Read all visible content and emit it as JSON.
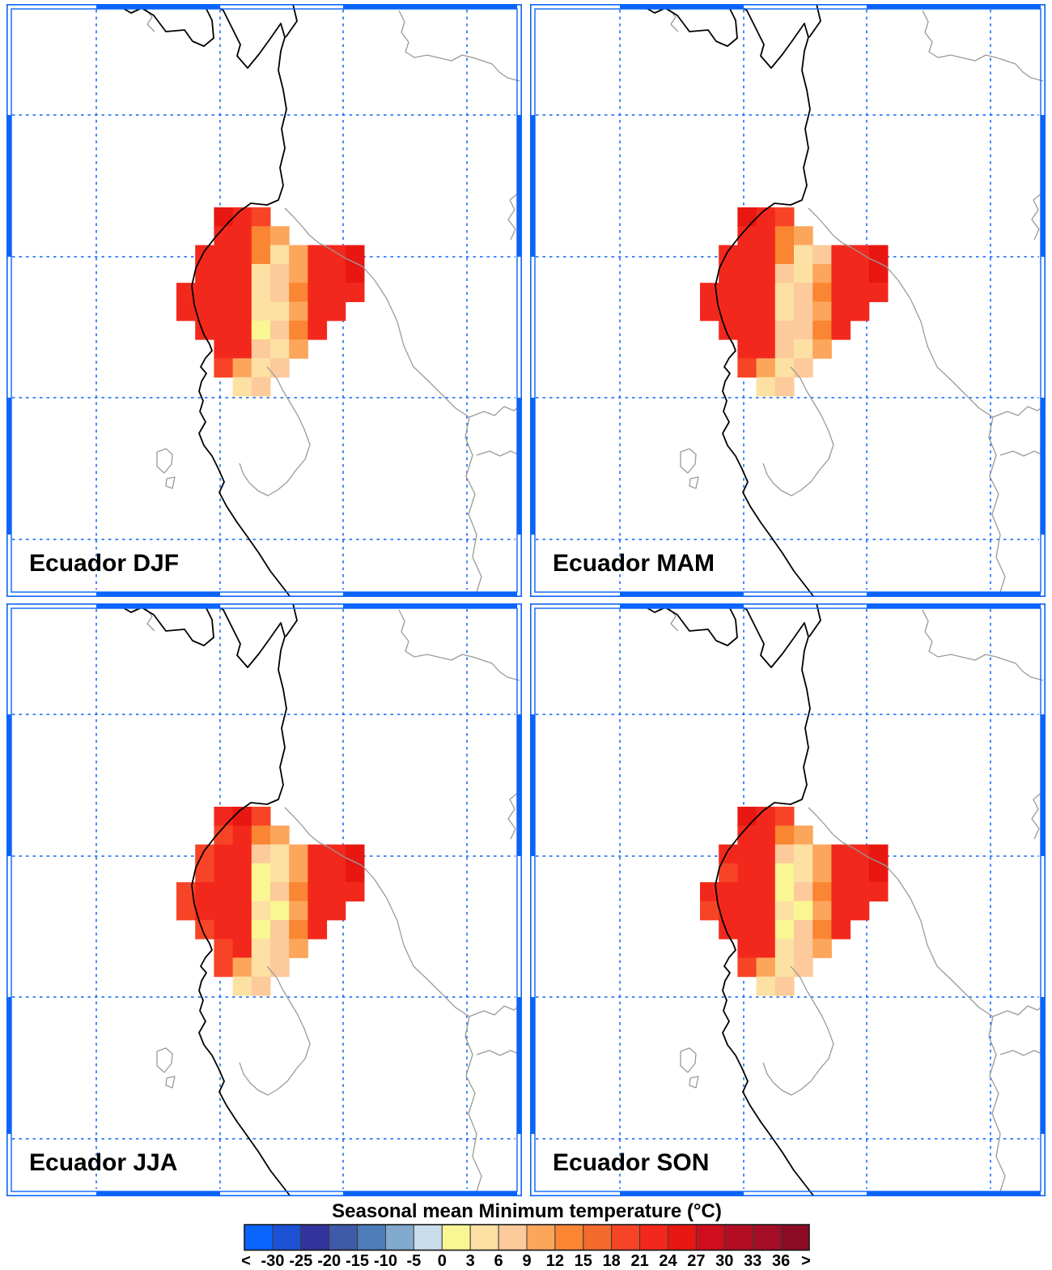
{
  "figure": {
    "panels": [
      {
        "label": "Ecuador DJF"
      },
      {
        "label": "Ecuador MAM"
      },
      {
        "label": "Ecuador JJA"
      },
      {
        "label": "Ecuador SON"
      }
    ],
    "colorbar": {
      "title": "Seasonal mean Minimum temperature (°C)",
      "tick_labels": [
        "<",
        "-30",
        "-25",
        "-20",
        "-15",
        "-10",
        "-5",
        "0",
        "3",
        "6",
        "9",
        "12",
        "15",
        "18",
        "21",
        "24",
        "27",
        "30",
        "33",
        "36",
        ">"
      ],
      "colors": [
        "#0A64FF",
        "#1C51D4",
        "#32339C",
        "#3F5AA9",
        "#4C7DB8",
        "#82A9CE",
        "#CADDEC",
        "#FAF693",
        "#FDE0A4",
        "#FDCA9B",
        "#FCA65B",
        "#FA8532",
        "#F4692C",
        "#F74426",
        "#F3281C",
        "#E81711",
        "#CE0E1C",
        "#B30D24",
        "#A30D26",
        "#8A0B23"
      ]
    },
    "accent_blue": "#0A64FA"
  },
  "chart_data": {
    "type": "heatmap",
    "title": "Seasonal mean Minimum temperature (°C)",
    "subplots": [
      "Ecuador DJF",
      "Ecuador MAM",
      "Ecuador JJA",
      "Ecuador SON"
    ],
    "legend_position": "bottom",
    "colorbar_ticks": [
      "<",
      "-30",
      "-25",
      "-20",
      "-15",
      "-10",
      "-5",
      "0",
      "3",
      "6",
      "9",
      "12",
      "15",
      "18",
      "21",
      "24",
      "27",
      "30",
      "33",
      "36",
      ">"
    ],
    "units": "°C",
    "palette": {
      "E": "#E81711",
      "R": "#F3281C",
      "Q": "#F74426",
      "O": "#FA8532",
      "o": "#FCA65B",
      "P": "#FDCA9B",
      "C": "#FDE0A4",
      "Y": "#FAF693"
    },
    "palette_value_ranges_degC": {
      "E": "24 to 27",
      "R": "21 to 24",
      "Q": "18 to 21",
      "O": "12 to 15",
      "o": "9 to 12",
      "P": "6 to 9",
      "C": "3 to 6",
      "Y": "0 to 3"
    },
    "grids": {
      "DJF": [
        "..ERQ.....",
        "..RROo....",
        ".RRROCoRRE",
        ".RRRCPoRRE",
        "RRRRCPORRR",
        "RRRRCCoRR.",
        ".RRRYPOR..",
        "..RRPCo...",
        "..QoCP....",
        "...CP....."
      ],
      "MAM": [
        "..ERQ.....",
        "..RROo....",
        ".RRROCPRRE",
        ".RRRPCoRRE",
        "RRRRCPORRR",
        "RRRRCPoRR.",
        ".RRRPPOR..",
        "..RRPCo...",
        "..QoCP....",
        "...CP....."
      ],
      "JJA": [
        "..REQ.....",
        "..QROo....",
        ".QRRPCoRRE",
        ".QRRYCoRRE",
        "QRRRYPORRR",
        "QRRRCYoRR.",
        ".QRRYPOR..",
        "..QRCPo...",
        "..QoCP....",
        "...CP....."
      ],
      "SON": [
        "..ERQ.....",
        "..RROo....",
        ".RRRPCoRRE",
        ".QRRYCoRRE",
        "RRRRYPORRR",
        "QRRRCYoRR.",
        ".RRRYPOR..",
        "..RRCPo...",
        "..QoCP....",
        "...CP....."
      ]
    }
  }
}
